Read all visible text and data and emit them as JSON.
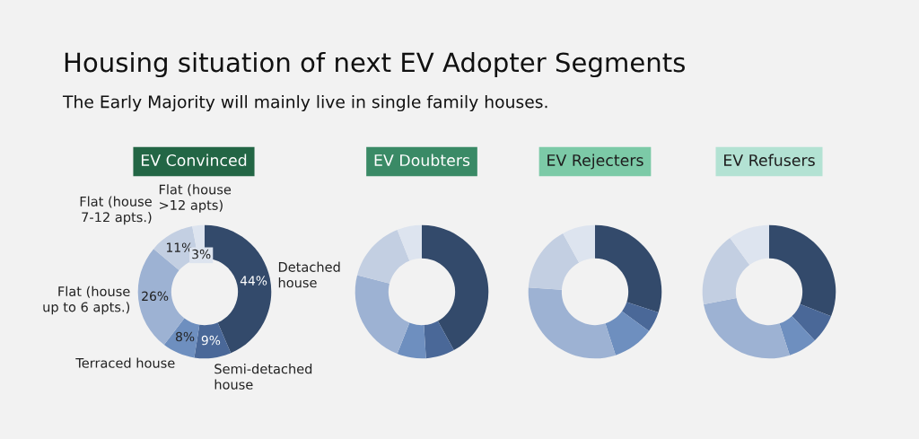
{
  "chart_data": [
    {
      "type": "donut",
      "title": "EV Convinced",
      "annotations": [
        "Housing situation of next EV Adopter Segments",
        "The Early Majority will mainly live in single family houses."
      ],
      "categories": [
        "Detached\nhouse",
        "Semi-detached\nhouse",
        "Terraced house",
        "Flat (house\nup to 6 apts.)",
        "Flat (house\n7-12 apts.)",
        "Flat (house\n>12 apts)"
      ],
      "values": [
        44,
        9,
        8,
        26,
        11,
        3
      ],
      "value_labels": [
        "44%",
        "9%",
        "8%",
        "26%",
        "11%",
        "3%"
      ],
      "colors": [
        "#334a6b",
        "#4a6898",
        "#6e8fbf",
        "#9db2d3",
        "#c3cfe2",
        "#dde4ef"
      ],
      "legend": false
    },
    {
      "type": "donut",
      "title": "EV Doubters",
      "categories": [
        null,
        null,
        null,
        null,
        null,
        null
      ],
      "values": [
        42,
        7,
        7,
        23,
        15,
        6
      ],
      "colors": [
        "#334a6b",
        "#4a6898",
        "#6e8fbf",
        "#9db2d3",
        "#c3cfe2",
        "#dde4ef"
      ],
      "legend": false
    },
    {
      "type": "donut",
      "title": "EV Rejecters",
      "categories": [
        null,
        null,
        null,
        null,
        null,
        null
      ],
      "values": [
        30,
        5,
        10,
        31,
        16,
        8
      ],
      "colors": [
        "#334a6b",
        "#4a6898",
        "#6e8fbf",
        "#9db2d3",
        "#c3cfe2",
        "#dde4ef"
      ],
      "legend": false
    },
    {
      "type": "donut",
      "title": "EV Refusers",
      "categories": [
        null,
        null,
        null,
        null,
        null,
        null
      ],
      "values": [
        31,
        7,
        7,
        27,
        18,
        10
      ],
      "colors": [
        "#334a6b",
        "#4a6898",
        "#6e8fbf",
        "#9db2d3",
        "#c3cfe2",
        "#dde4ef"
      ],
      "legend": false
    }
  ]
}
